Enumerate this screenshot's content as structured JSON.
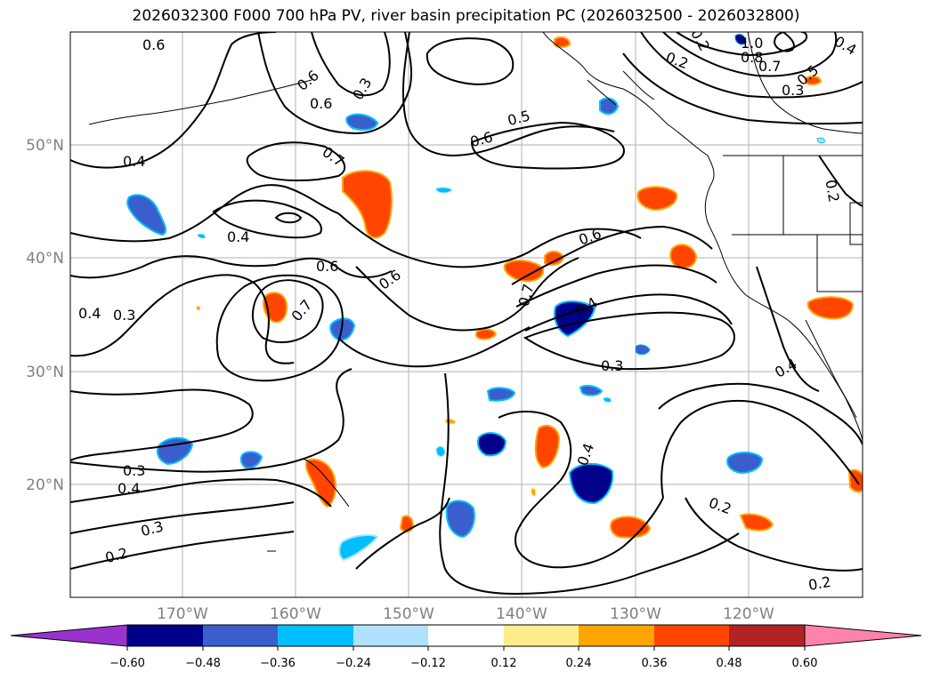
{
  "title": "2026032300 F000 700 hPa PV, river basin precipitation PC (2026032500 - 2026032800)",
  "map": {
    "lon_labels": [
      "170°W",
      "160°W",
      "150°W",
      "140°W",
      "130°W",
      "120°W"
    ],
    "lat_labels": [
      "50°N",
      "40°N",
      "30°N",
      "20°N"
    ],
    "gridline_color": "#b0b0b0",
    "contour_labels": [
      "0.6",
      "0.6",
      "0.3",
      "0.6",
      "0.5",
      "0.6",
      "0.7",
      "0.4",
      "0.4",
      "0.6",
      "0.6",
      "0.6",
      "0.7",
      "0.7",
      "0.4",
      "0.3",
      "0.4",
      "0.3",
      "0.4",
      "0.3",
      "0.4",
      "0.3",
      "0.2",
      "0.2",
      "0.2",
      "0.2",
      "0.2",
      "0.4",
      "1.0",
      "0.8",
      "0.7",
      "0.5",
      "0.3",
      "0.2",
      "0.4"
    ]
  },
  "colorbar": {
    "ticks": [
      "−0.60",
      "−0.48",
      "−0.36",
      "−0.24",
      "−0.12",
      "0.12",
      "0.24",
      "0.36",
      "0.48",
      "0.60"
    ],
    "colors": [
      "#9a32cd",
      "#00008b",
      "#3a5fcd",
      "#00bfff",
      "#b0e2ff",
      "#ffffff",
      "#ffec8b",
      "#ffa500",
      "#ff4500",
      "#b22222",
      "#ff82ab"
    ]
  }
}
